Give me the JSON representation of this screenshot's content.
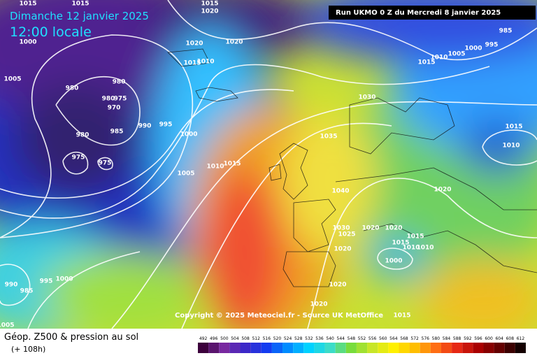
{
  "header": {
    "date": "Dimanche 12 janvier 2025",
    "time": "12:00 locale",
    "run": "Run UKMO 0 Z du Mercredi 8 janvier 2025"
  },
  "copyright": "Copyright © 2025 Meteociel.fr - Source UK MetOffice",
  "footer": {
    "title": "Géop. Z500 & pression au sol",
    "lead": "(+ 108h)"
  },
  "legend": {
    "ticks": [
      492,
      496,
      500,
      504,
      508,
      512,
      516,
      520,
      524,
      528,
      532,
      536,
      540,
      544,
      548,
      552,
      556,
      560,
      564,
      568,
      572,
      576,
      580,
      584,
      588,
      592,
      596,
      600,
      604,
      608,
      612
    ]
  },
  "isobars": [
    1015,
    1015,
    1015,
    1020,
    1000,
    1020,
    1020,
    1015,
    1010,
    1005,
    980,
    980,
    980,
    975,
    970,
    980,
    985,
    990,
    995,
    1000,
    975,
    975,
    1005,
    1010,
    1015,
    1035,
    1030,
    1040,
    1030,
    1025,
    1020,
    1020,
    1015,
    1010,
    1015,
    1010,
    1020,
    1000,
    1020,
    1020,
    1015,
    990,
    985,
    995,
    1000,
    1005,
    1015,
    1010,
    1020,
    1010,
    1005,
    1000,
    995,
    1015,
    985
  ]
}
